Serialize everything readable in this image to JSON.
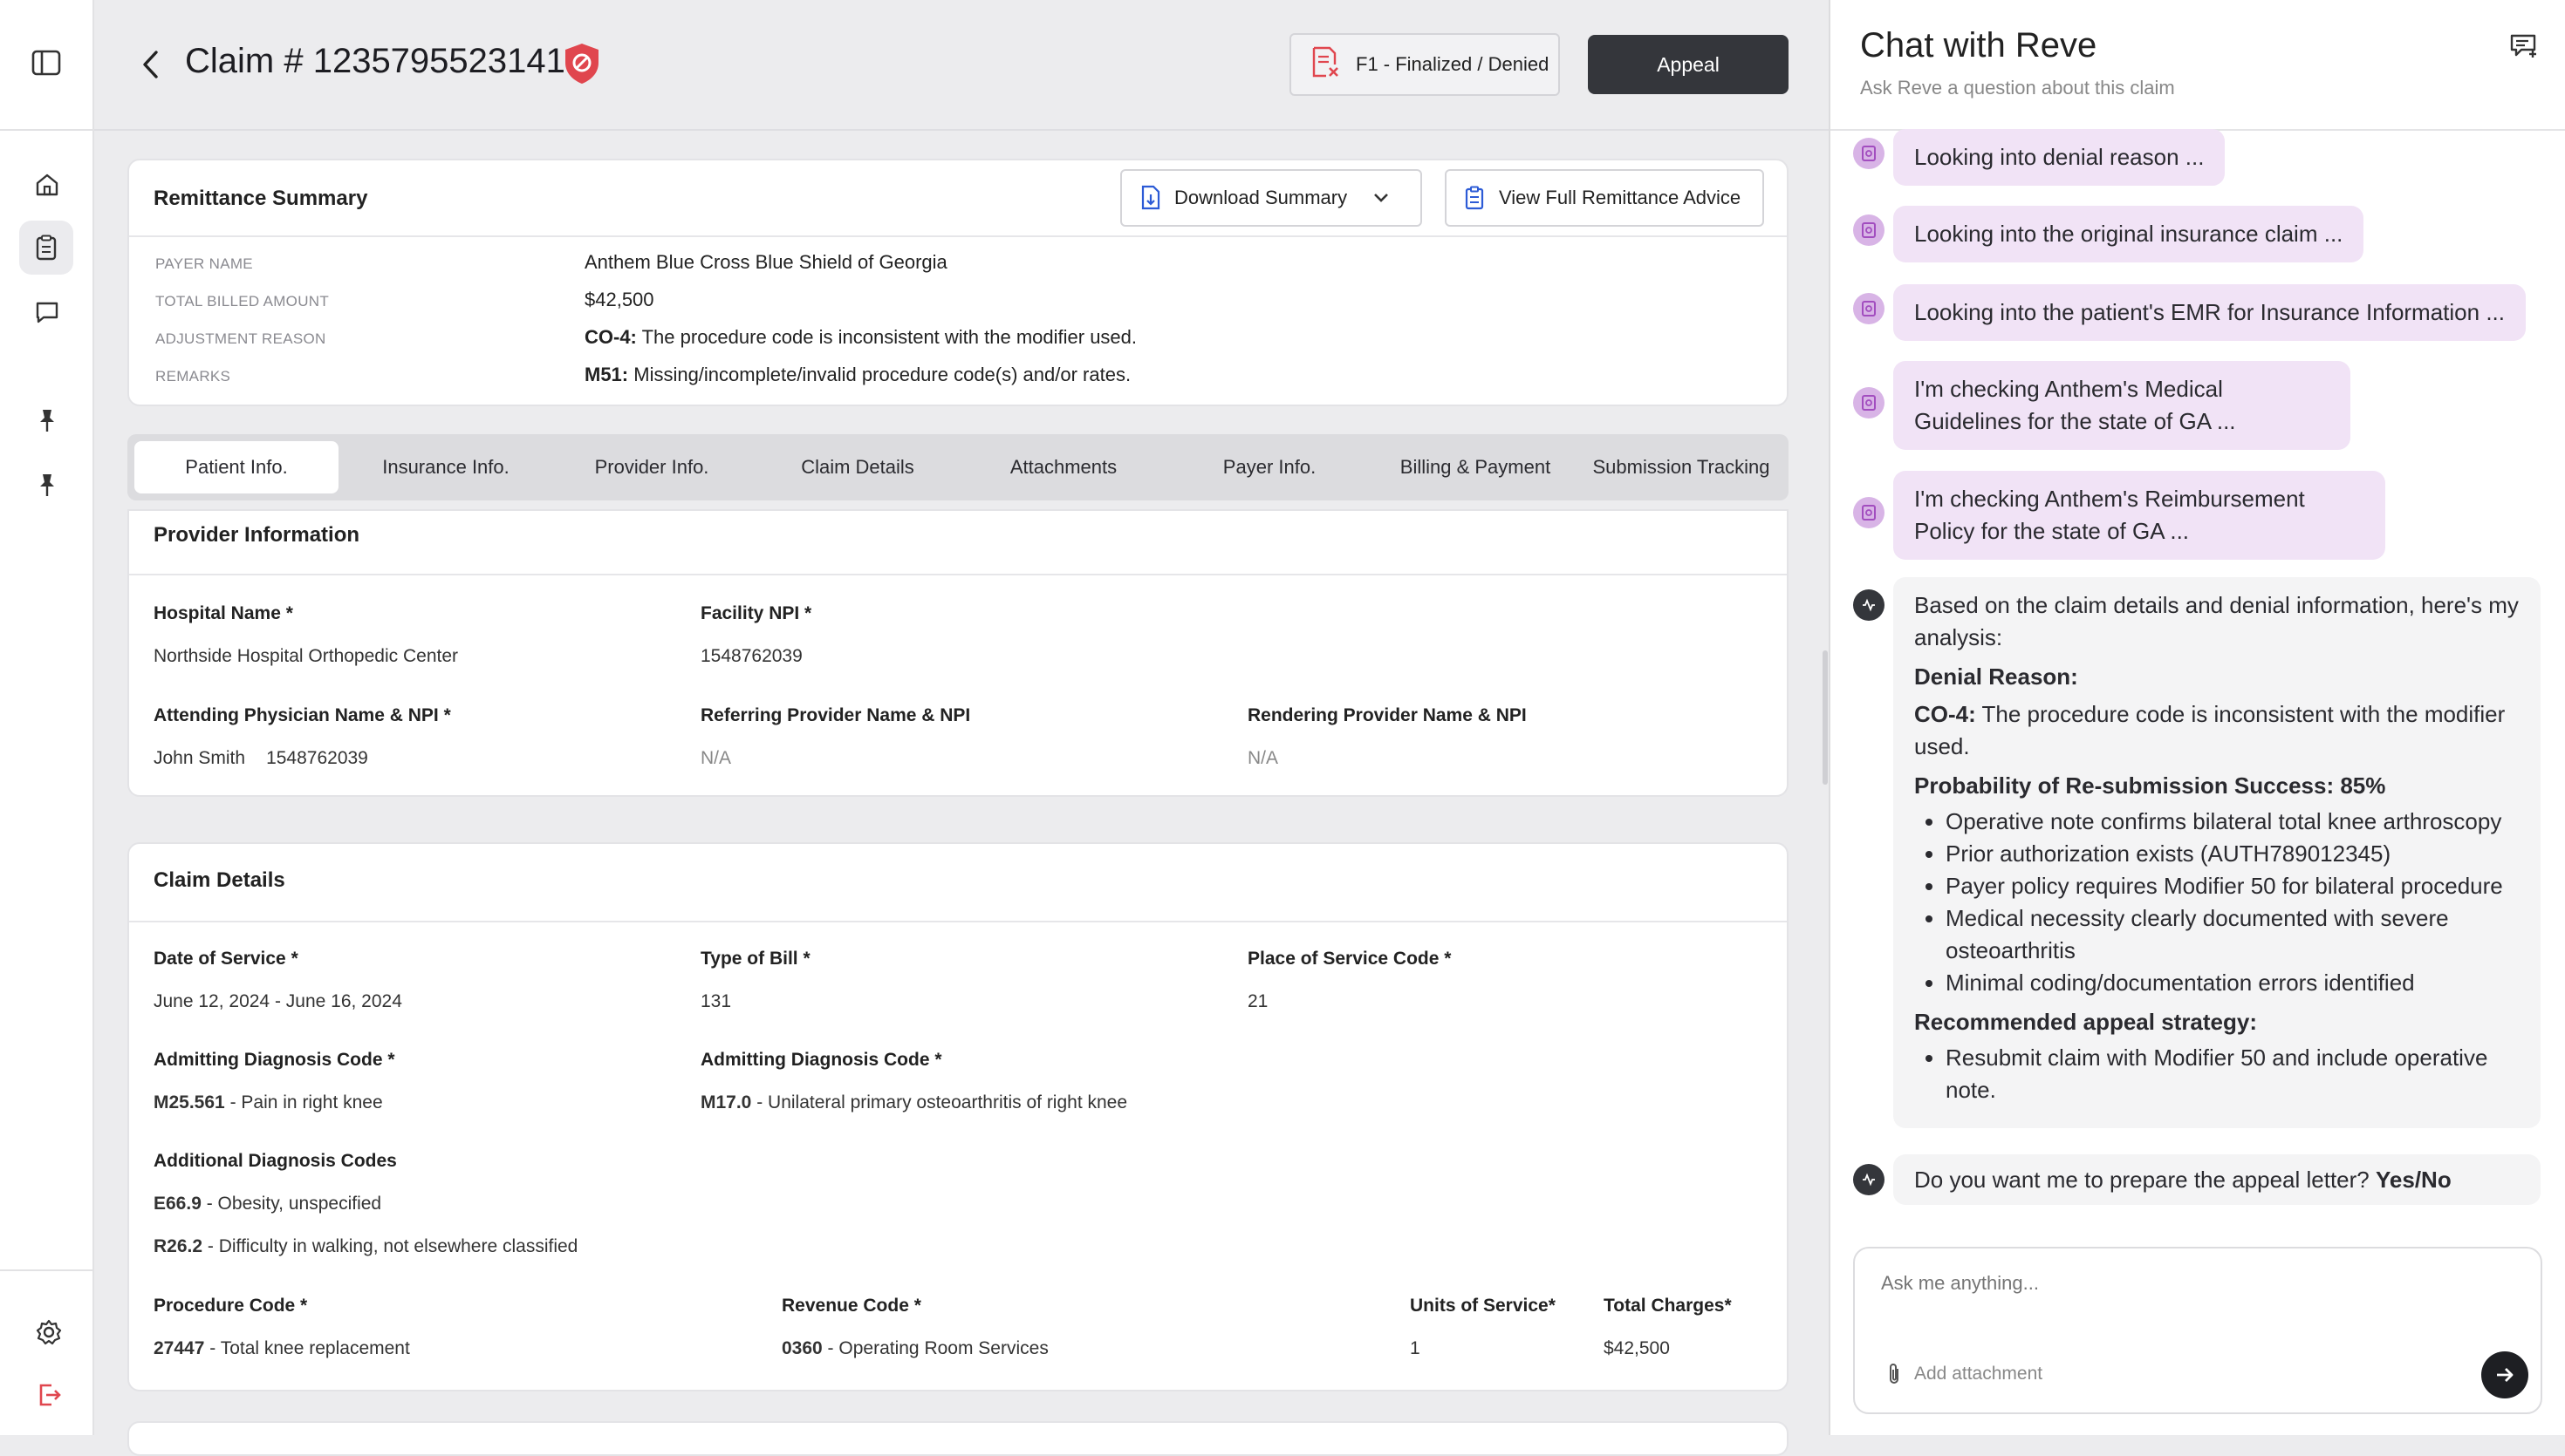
{
  "header": {
    "claim_title": "Claim # 1235795523141",
    "status_label": "F1 - Finalized / Denied",
    "appeal_label": "Appeal"
  },
  "remittance": {
    "title": "Remittance Summary",
    "download_label": "Download Summary",
    "view_full_label": "View Full Remittance Advice",
    "rows": [
      {
        "label": "PAYER NAME",
        "code": "",
        "value": "Anthem Blue Cross Blue Shield of Georgia"
      },
      {
        "label": "TOTAL BILLED AMOUNT",
        "code": "",
        "value": "$42,500"
      },
      {
        "label": "ADJUSTMENT REASON",
        "code": "CO-4:",
        "value": " The procedure code is inconsistent with the modifier used."
      },
      {
        "label": "REMARKS",
        "code": "M51:",
        "value": " Missing/incomplete/invalid procedure code(s) and/or rates."
      }
    ]
  },
  "tabs": [
    "Patient Info.",
    "Insurance Info.",
    "Provider Info.",
    "Claim Details",
    "Attachments",
    "Payer Info.",
    "Billing & Payment",
    "Submission Tracking"
  ],
  "provider": {
    "title": "Provider Information",
    "hospital_label": "Hospital Name *",
    "hospital_value": "Northside Hospital Orthopedic Center",
    "facility_npi_label": "Facility NPI *",
    "facility_npi_value": "1548762039",
    "attending_label": "Attending Physician Name & NPI *",
    "attending_name": "John Smith",
    "attending_npi": "1548762039",
    "referring_label": "Referring Provider Name & NPI",
    "referring_value": "N/A",
    "rendering_label": "Rendering Provider Name & NPI",
    "rendering_value": "N/A"
  },
  "claim": {
    "title": "Claim Details",
    "dos_label": "Date of Service *",
    "dos_value": "June 12, 2024 - June 16, 2024",
    "tob_label": "Type of Bill *",
    "tob_value": "131",
    "pos_label": "Place of Service Code *",
    "pos_value": "21",
    "adm1_label": "Admitting Diagnosis Code *",
    "adm1_code": "M25.561",
    "adm1_desc": " - Pain in right knee",
    "adm2_label": "Admitting Diagnosis Code *",
    "adm2_code": "M17.0",
    "adm2_desc": " - Unilateral primary osteoarthritis of right knee",
    "addl_label": "Additional Diagnosis Codes",
    "addl1_code": "E66.9",
    "addl1_desc": " - Obesity, unspecified",
    "addl2_code": "R26.2",
    "addl2_desc": " - Difficulty in walking, not elsewhere classified",
    "proc_label": "Procedure Code *",
    "proc_code": "27447",
    "proc_desc": " - Total knee replacement",
    "rev_label": "Revenue Code *",
    "rev_code": "0360",
    "rev_desc": " - Operating Room Services",
    "units_label": "Units of Service*",
    "units_value": "1",
    "charges_label": "Total Charges*",
    "charges_value": "$42,500"
  },
  "chat": {
    "title": "Chat with Reve",
    "subtitle": "Ask Reve a question about this claim",
    "status_messages": [
      "Looking into denial reason ...",
      "Looking into the original insurance claim ...",
      "Looking into the patient's EMR for Insurance Information  ...",
      "I'm checking Anthem's Medical Guidelines for the state of GA ...",
      "I'm checking Anthem's Reimbursement Policy for the state of GA ..."
    ],
    "answer": {
      "intro": "Based on the claim details and denial information, here's my analysis:",
      "denial_heading": "Denial Reason:",
      "denial_code": "CO-4:",
      "denial_text": " The procedure code is inconsistent with the modifier used.",
      "probability_heading": "Probability of Re-submission Success: 85%",
      "points": [
        "Operative note confirms bilateral total knee arthroscopy",
        "Prior authorization exists (AUTH789012345)",
        "Payer policy requires Modifier 50 for bilateral procedure",
        "Medical necessity clearly documented with severe osteoarthritis",
        "Minimal coding/documentation errors identified"
      ],
      "strategy_heading": "Recommended appeal strategy:",
      "strategy_points": [
        "Resubmit claim with Modifier 50 and include operative note."
      ]
    },
    "question_text": "Do you want me to prepare the appeal letter? ",
    "question_options": "Yes/No",
    "input_placeholder": "Ask me anything...",
    "attachment_label": "Add attachment"
  },
  "colors": {
    "accent_dark": "#34363b",
    "denied_red": "#e0464e",
    "chat_bubble": "#f1e3f6",
    "chat_icon": "#d8b4e6"
  }
}
